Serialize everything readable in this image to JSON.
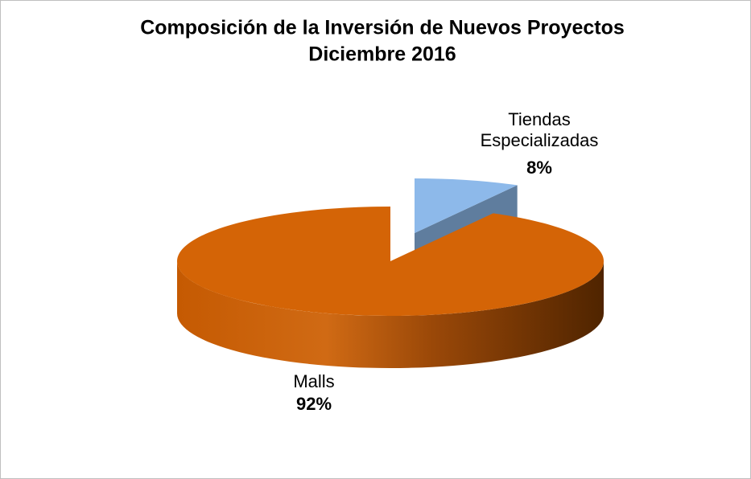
{
  "chart_data": {
    "type": "pie",
    "title": "Composición de la Inversión de Nuevos Proyectos",
    "subtitle": "Diciembre 2016",
    "categories": [
      "Tiendas Especializadas",
      "Malls"
    ],
    "values": [
      8,
      92
    ],
    "value_labels": [
      "8%",
      "92%"
    ],
    "colors": [
      "#8db9ea",
      "#d46406"
    ]
  }
}
